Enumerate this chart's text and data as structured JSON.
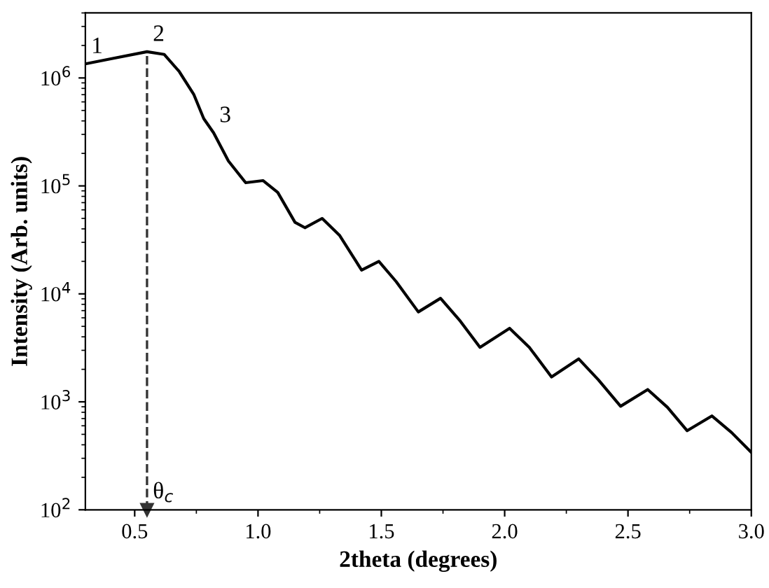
{
  "chart_data": {
    "type": "line",
    "xlabel": "2theta (degrees)",
    "ylabel": "Intensity (Arb. units)",
    "log": "y",
    "x": [
      0.3,
      0.4,
      0.55,
      0.62,
      0.68,
      0.74,
      0.78,
      0.82,
      0.88,
      0.95,
      1.02,
      1.08,
      1.15,
      1.19,
      1.26,
      1.33,
      1.42,
      1.49,
      1.56,
      1.65,
      1.74,
      1.82,
      1.9,
      2.02,
      2.1,
      2.19,
      2.3,
      2.38,
      2.47,
      2.58,
      2.66,
      2.74,
      2.84,
      2.92,
      3.0
    ],
    "series": [
      {
        "color": "#000000",
        "values": [
          1350000,
          1500000,
          1750000,
          1650000,
          1150000,
          700000,
          420000,
          310000,
          170000,
          107000,
          112000,
          87000,
          46000,
          41000,
          50000,
          35000,
          16600,
          20000,
          13000,
          6800,
          9100,
          5600,
          3200,
          4800,
          3200,
          1700,
          2500,
          1600,
          910,
          1300,
          890,
          540,
          740,
          520,
          340
        ]
      }
    ],
    "xlim": [
      0.3,
      3.0
    ],
    "xticks": [
      {
        "value": 0.5,
        "label": "0.5"
      },
      {
        "value": 1.0,
        "label": "1.0"
      },
      {
        "value": 1.5,
        "label": "1.5"
      },
      {
        "value": 2.0,
        "label": "2.0"
      },
      {
        "value": 2.5,
        "label": "2.5"
      },
      {
        "value": 3.0,
        "label": "3.0"
      }
    ],
    "ylim": [
      100,
      4000000
    ],
    "yticks": [
      {
        "value": 100,
        "label": "10$^{2}$"
      },
      {
        "value": 1000,
        "label": "10$^{3}$"
      },
      {
        "value": 10000,
        "label": "10$^{4}$"
      },
      {
        "value": 100000,
        "label": "10$^{5}$"
      },
      {
        "value": 1000000,
        "label": "10$^{6}$"
      }
    ],
    "ref_lines": [
      {
        "axis": "x",
        "value": 0.55,
        "label": "θ$_{c}$",
        "line_style": "dashed",
        "color": "#333333"
      }
    ],
    "annotations": [
      {
        "text": "1",
        "x": 0.3,
        "y": 1350000
      },
      {
        "text": "2",
        "x": 0.55,
        "y": 1750000
      },
      {
        "text": "3",
        "x": 0.82,
        "y": 310000
      }
    ],
    "grid": false,
    "legend": false,
    "marker": "none",
    "line_style": "solid"
  }
}
